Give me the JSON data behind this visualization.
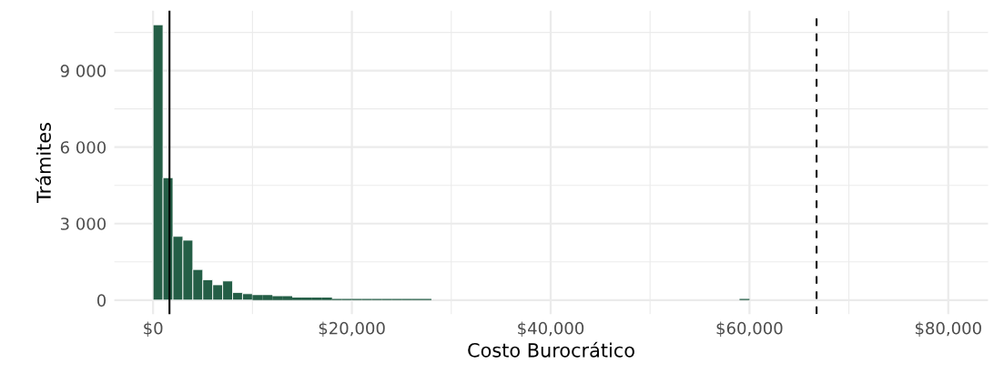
{
  "chart_data": {
    "type": "histogram",
    "xlabel": "Costo Burocrático",
    "ylabel": "Trámites",
    "bins": [
      0,
      1000,
      2000,
      3000,
      4000,
      5000,
      6000,
      7000,
      8000,
      9000,
      10000,
      11000,
      12000,
      13000,
      14000,
      15000,
      16000,
      17000,
      18000,
      19000,
      20000,
      21000,
      22000,
      23000,
      24000,
      25000,
      26000,
      27000,
      28000,
      29000,
      30000,
      31000,
      32000,
      33000,
      34000,
      35000,
      36000,
      37000,
      38000,
      39000,
      40000,
      41000,
      42000,
      43000,
      44000,
      45000,
      46000,
      47000,
      48000,
      49000,
      50000,
      51000,
      52000,
      53000,
      54000,
      55000,
      56000,
      57000,
      58000,
      59000,
      60000,
      61000,
      62000,
      63000,
      64000,
      65000,
      66000,
      67000,
      68000,
      69000,
      70000,
      71000,
      72000,
      73000,
      74000,
      75000,
      76000,
      77000,
      78000,
      79000,
      80000
    ],
    "values": [
      10800,
      4800,
      2500,
      2350,
      1200,
      800,
      600,
      750,
      300,
      250,
      200,
      200,
      150,
      150,
      100,
      100,
      100,
      100,
      50,
      50,
      50,
      50,
      50,
      50,
      50,
      50,
      50,
      50,
      0,
      0,
      0,
      0,
      0,
      0,
      0,
      0,
      0,
      0,
      0,
      0,
      0,
      0,
      0,
      0,
      0,
      0,
      0,
      0,
      0,
      0,
      0,
      0,
      0,
      0,
      0,
      0,
      0,
      0,
      0,
      50,
      0,
      0,
      0,
      0,
      0,
      0,
      0,
      0,
      0,
      0,
      0,
      0,
      0,
      0,
      0,
      0,
      0,
      0,
      0,
      0
    ],
    "color": "#245e46",
    "xlim": [
      -3900,
      84000
    ],
    "ylim": [
      -550,
      11350
    ],
    "xticks": [
      {
        "value": 0,
        "label": "$0"
      },
      {
        "value": 10000,
        "label": null
      },
      {
        "value": 20000,
        "label": "$20,000"
      },
      {
        "value": 30000,
        "label": null
      },
      {
        "value": 40000,
        "label": "$40,000"
      },
      {
        "value": 50000,
        "label": null
      },
      {
        "value": 60000,
        "label": "$60,000"
      },
      {
        "value": 70000,
        "label": null
      },
      {
        "value": 80000,
        "label": "$80,000"
      }
    ],
    "yticks": [
      0,
      {
        "value": 1500,
        "label": null
      },
      {
        "value": 3000,
        "label": "3 000"
      },
      {
        "value": 4500,
        "label": null
      },
      {
        "value": 6000,
        "label": "6 000"
      },
      {
        "value": 7500,
        "label": null
      },
      {
        "value": 9000,
        "label": "9 000"
      },
      {
        "value": 10500,
        "label": null
      }
    ],
    "ref_lines": [
      {
        "axis": "x",
        "value": 1650,
        "color": "#000000",
        "line_style": "solid"
      },
      {
        "axis": "x",
        "value": 66750,
        "color": "#000000",
        "line_style": "dashed"
      }
    ],
    "grid": true
  }
}
